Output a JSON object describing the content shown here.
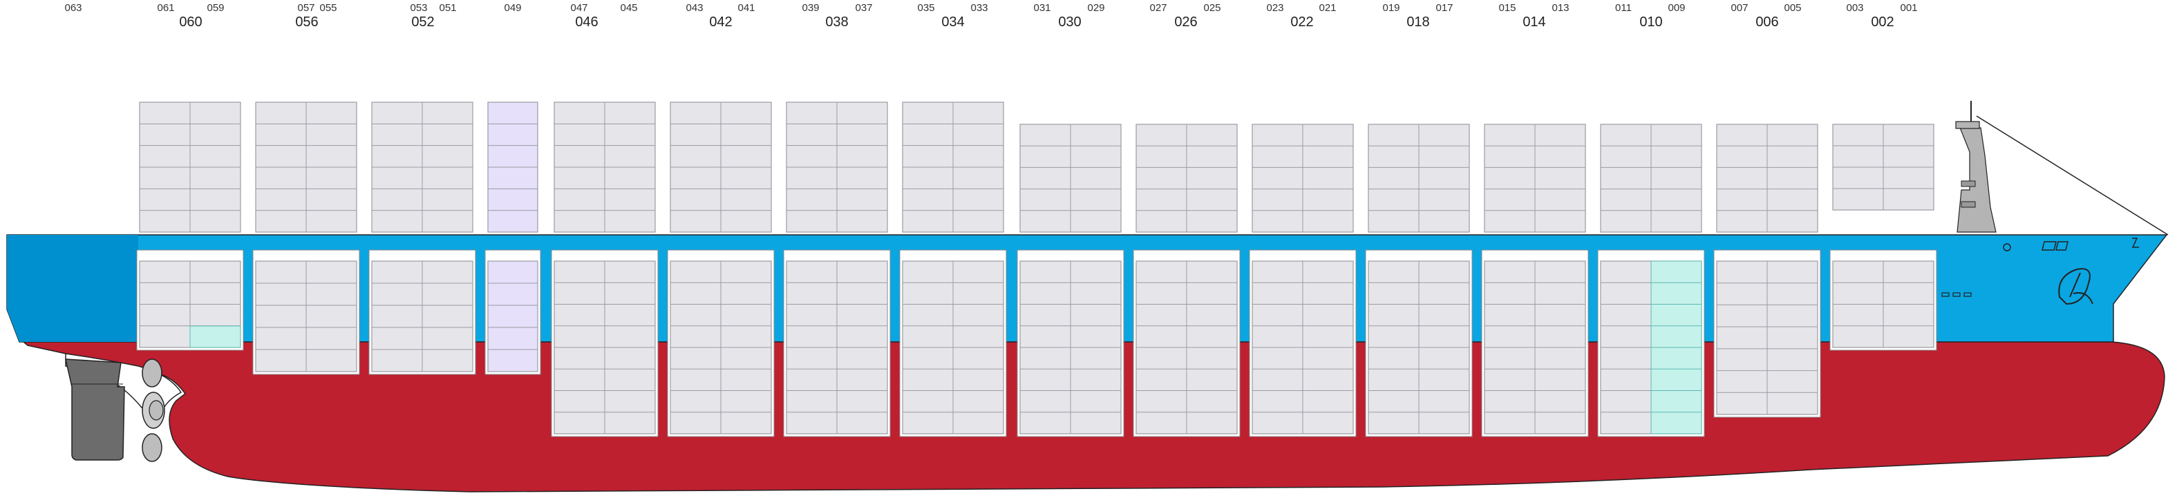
{
  "bay_labels": {
    "top_row": [
      "063",
      "061",
      "059",
      "057",
      "055",
      "053",
      "051",
      "049",
      "047",
      "045",
      "043",
      "041",
      "039",
      "037",
      "035",
      "033",
      "031",
      "029",
      "027",
      "025",
      "023",
      "021",
      "019",
      "017",
      "015",
      "013",
      "011",
      "009",
      "007",
      "005",
      "003",
      "001"
    ],
    "main_row": [
      "060",
      "056",
      "052",
      "046",
      "042",
      "038",
      "034",
      "030",
      "026",
      "022",
      "018",
      "014",
      "010",
      "006",
      "002"
    ]
  },
  "colors": {
    "hull_bottom": "#be2030",
    "hull_top": "#0aa6e2",
    "hull_top_dark": "#0090d0",
    "container_fill": "#e6e6ea",
    "container_stroke": "#9a9aa2",
    "highlight_purple": "#e6e0fa",
    "highlight_teal": "#c6f2ec",
    "superstructure": "#b4b4b4",
    "rudder": "#6c6c6c"
  },
  "icons": [
    "propeller-icon",
    "rudder-icon",
    "anchor-icon",
    "bow-logo-icon",
    "wheelhouse-icon"
  ]
}
